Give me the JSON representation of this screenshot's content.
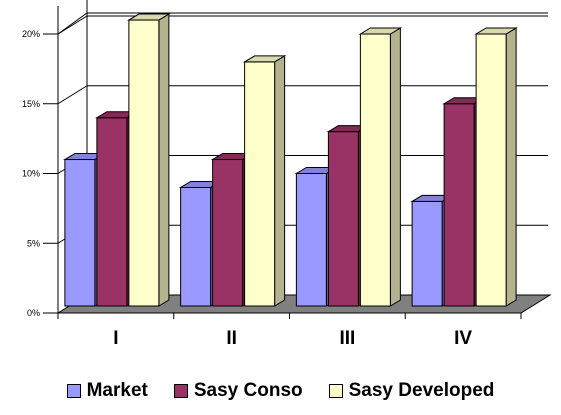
{
  "chart_data": {
    "type": "bar",
    "categories": [
      "I",
      "II",
      "III",
      "IV"
    ],
    "series": [
      {
        "name": "Market",
        "values": [
          11,
          9,
          10,
          8
        ],
        "color": "#9999FF"
      },
      {
        "name": "Sasy Conso",
        "values": [
          14,
          11,
          13,
          15
        ],
        "color": "#993366"
      },
      {
        "name": "Sasy Developed",
        "values": [
          21,
          18,
          20,
          20
        ],
        "color": "#FFFFCC"
      }
    ],
    "ylim": [
      0,
      20
    ],
    "yticks": [
      0,
      5,
      10,
      15,
      20
    ],
    "ytick_labels": [
      "0%",
      "5%",
      "10%",
      "15%",
      "20%"
    ],
    "grid": true,
    "legend_position": "bottom",
    "three_d": true
  }
}
